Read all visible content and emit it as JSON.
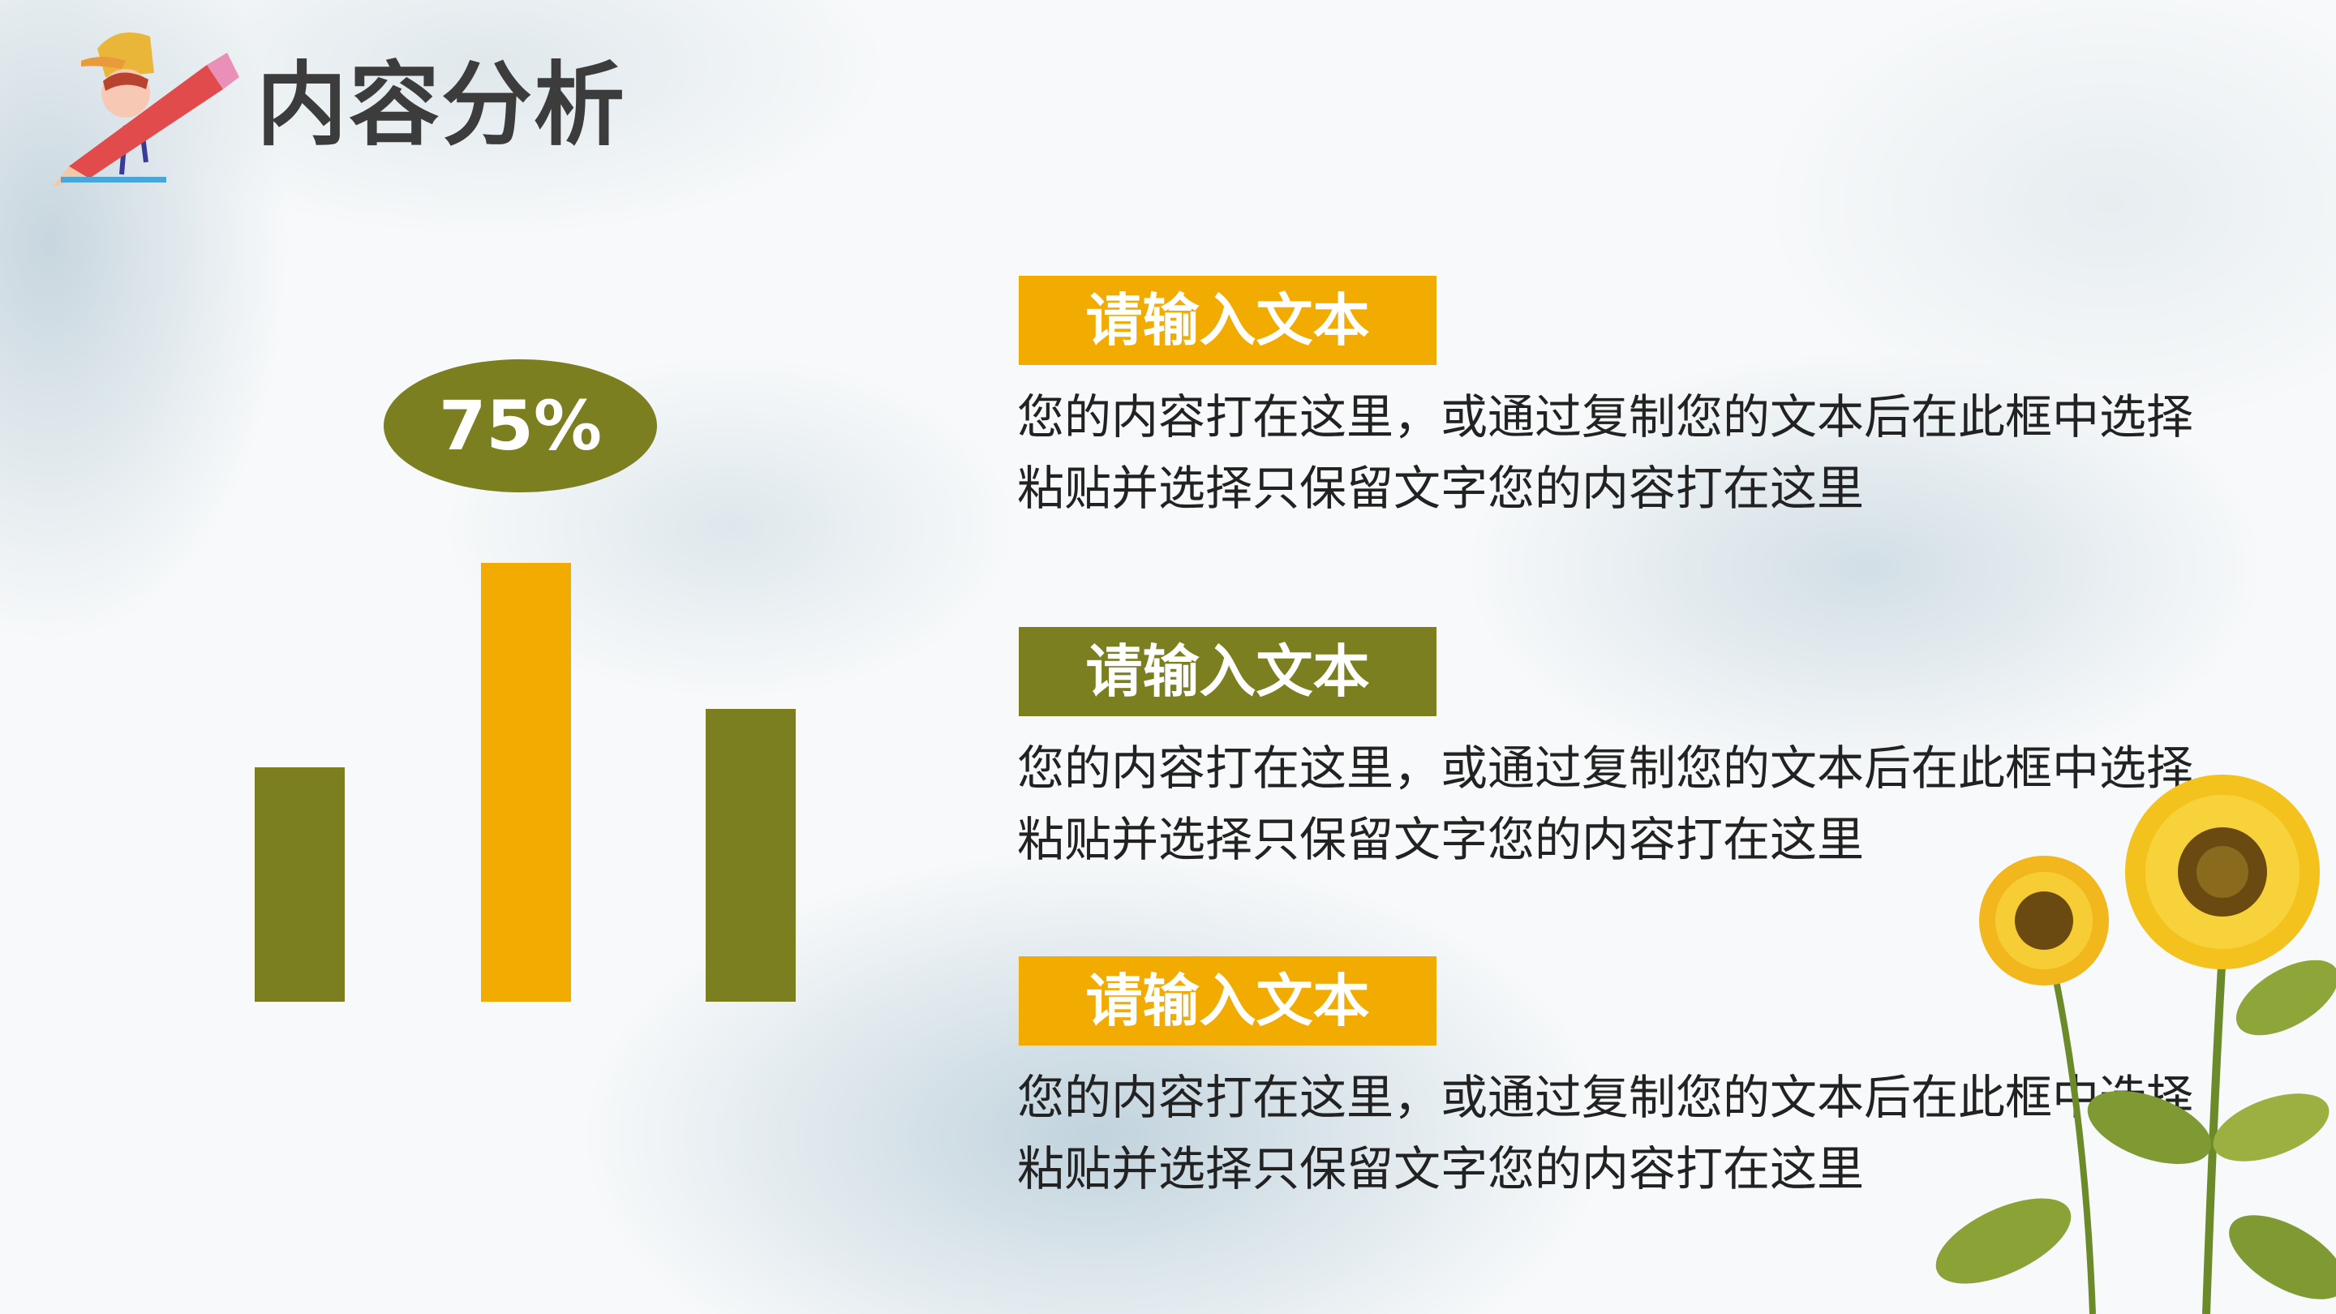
{
  "header": {
    "title": "内容分析",
    "mascot_icon": "boy-with-pencil-icon"
  },
  "chart_data": {
    "type": "bar",
    "categories": [
      "",
      "",
      ""
    ],
    "values": [
      40,
      75,
      50
    ],
    "highlight_index": 1,
    "data_label": "75%",
    "colors": {
      "normal": "#7b7f20",
      "highlight": "#f2ab00"
    },
    "ylim": [
      0,
      75
    ],
    "grid": false
  },
  "items": [
    {
      "label": "请输入文本",
      "color": "#f2ab00",
      "lines": [
        "您的内容打在这里，或通过复制您的文本后在此框中选择",
        "粘贴并选择只保留文字您的内容打在这里"
      ]
    },
    {
      "label": "请输入文本",
      "color": "#7b7f20",
      "lines": [
        "您的内容打在这里，或通过复制您的文本后在此框中选择",
        "粘贴并选择只保留文字您的内容打在这里"
      ]
    },
    {
      "label": "请输入文本",
      "color": "#f2ab00",
      "lines": [
        "您的内容打在这里，或通过复制您的文本后在此框中选择",
        "粘贴并选择只保留文字您的内容打在这里"
      ]
    }
  ],
  "decor": {
    "flower_icon": "sunflower-icon"
  }
}
